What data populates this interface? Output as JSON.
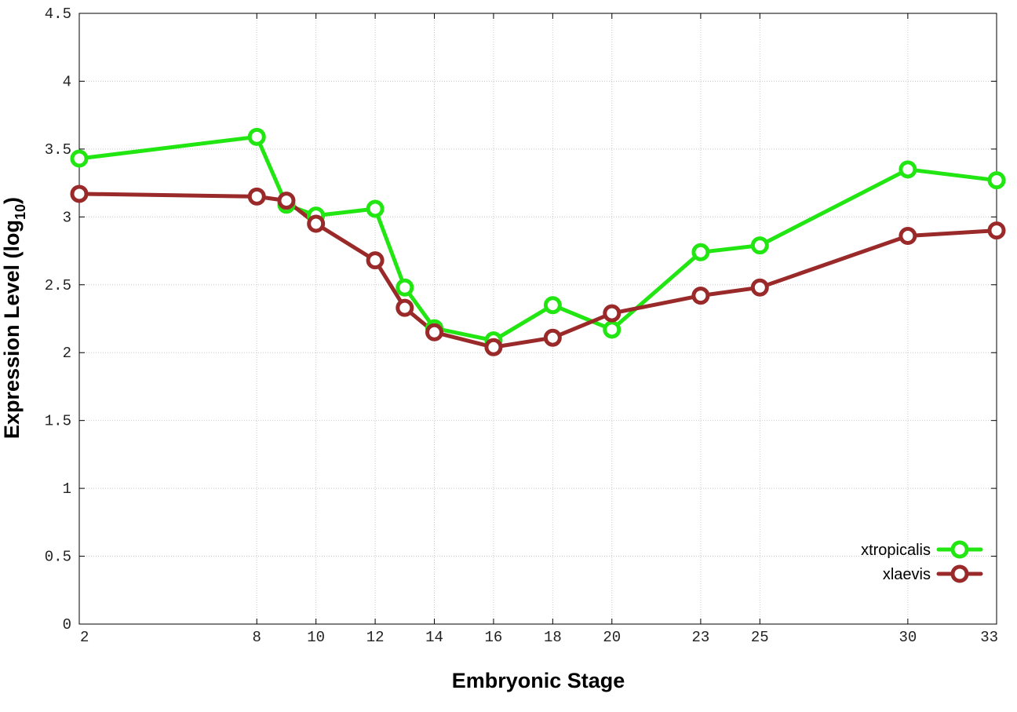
{
  "chart_data": {
    "type": "line",
    "title": "",
    "xlabel": "Embryonic Stage",
    "ylabel": "Expression Level (log",
    "ylabel_subscript": "10",
    "ylabel_suffix": ")",
    "xlim": [
      2,
      33
    ],
    "ylim": [
      0,
      4.5
    ],
    "x_ticks": [
      2,
      8,
      10,
      12,
      14,
      16,
      18,
      20,
      23,
      25,
      30,
      33
    ],
    "y_ticks": [
      0,
      0.5,
      1,
      1.5,
      2,
      2.5,
      3,
      3.5,
      4,
      4.5
    ],
    "y_tick_labels": [
      "0",
      "0.5",
      "1",
      "1.5",
      "2",
      "2.5",
      "3",
      "3.5",
      "4",
      "4.5"
    ],
    "grid": true,
    "legend_position": "bottom-right",
    "series": [
      {
        "name": "xtropicalis",
        "color": "#22e612",
        "marker": "circle",
        "x": [
          2,
          8,
          9,
          10,
          12,
          13,
          14,
          16,
          18,
          20,
          23,
          25,
          30,
          33
        ],
        "y": [
          3.43,
          3.59,
          3.09,
          3.01,
          3.06,
          2.48,
          2.18,
          2.09,
          2.35,
          2.17,
          2.74,
          2.79,
          3.35,
          3.27
        ]
      },
      {
        "name": "xlaevis",
        "color": "#9a2a2a",
        "marker": "circle",
        "x": [
          2,
          8,
          9,
          10,
          12,
          13,
          14,
          16,
          18,
          20,
          23,
          25,
          30,
          33
        ],
        "y": [
          3.17,
          3.15,
          3.12,
          2.95,
          2.68,
          2.33,
          2.15,
          2.04,
          2.11,
          2.29,
          2.42,
          2.48,
          2.86,
          2.9
        ]
      }
    ]
  }
}
